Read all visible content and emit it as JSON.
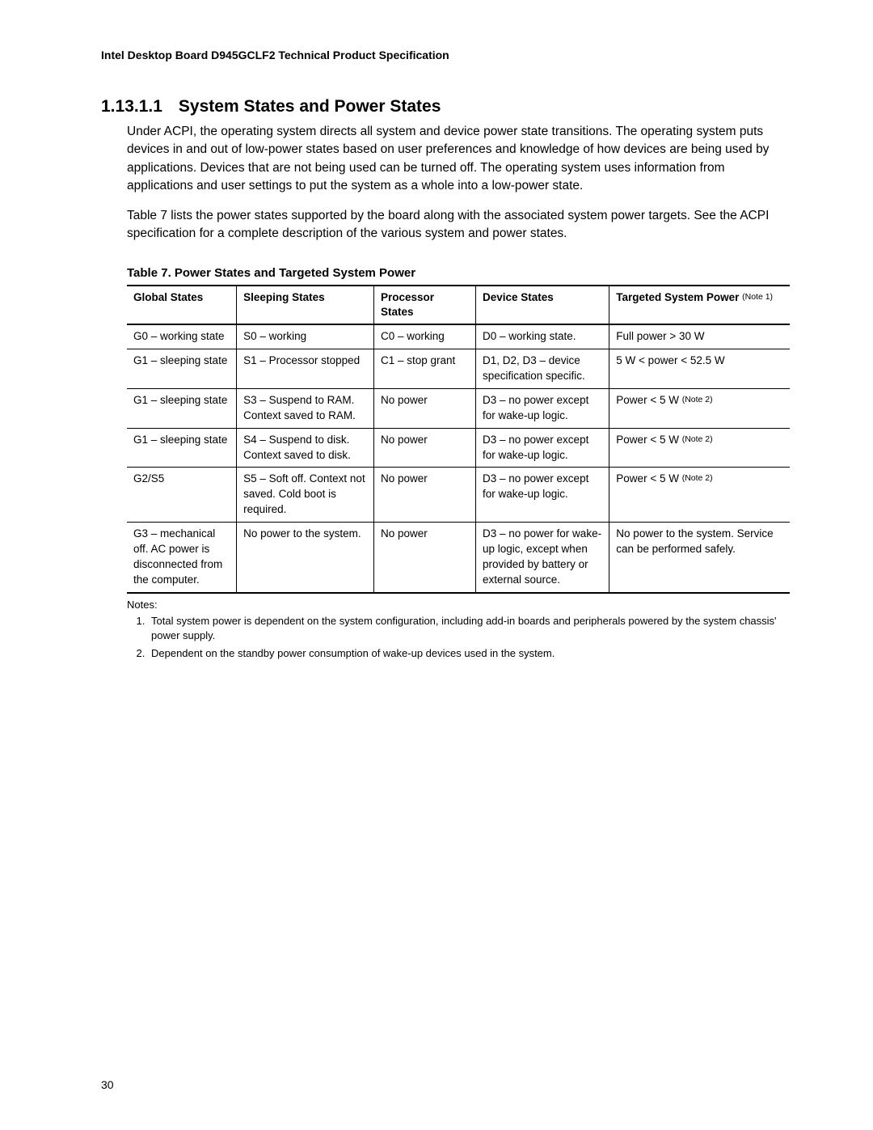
{
  "header": {
    "running_title": "Intel Desktop Board D945GCLF2 Technical Product Specification",
    "page_number": "30"
  },
  "section": {
    "number": "1.13.1.1",
    "title": "System States and Power States",
    "para1": "Under ACPI, the operating system directs all system and device power state transitions.  The operating system puts devices in and out of low-power states based on user preferences and knowledge of how devices are being used by applications.  Devices that are not being used can be turned off.  The operating system uses information from applications and user settings to put the system as a whole into a low-power state.",
    "para2": "Table 7 lists the power states supported by the board along with the associated system power targets.  See the ACPI specification for a complete description of the various system and power states."
  },
  "table": {
    "caption": "Table 7.  Power States and Targeted System Power",
    "columns": {
      "global": "Global States",
      "sleeping": "Sleeping States",
      "processor": "Processor States",
      "device": "Device States",
      "power_main": "Targeted System Power",
      "power_note": "(Note 1)"
    },
    "rows": [
      {
        "global": "G0 – working state",
        "sleeping": "S0 – working",
        "processor": "C0 – working",
        "device": "D0 – working state.",
        "power": "Full power > 30 W",
        "power_note": ""
      },
      {
        "global": "G1 – sleeping state",
        "sleeping": "S1 – Processor stopped",
        "processor": "C1 – stop grant",
        "device": "D1, D2, D3 – device specification specific.",
        "power": "5 W < power < 52.5 W",
        "power_note": ""
      },
      {
        "global": "G1 – sleeping state",
        "sleeping": "S3 – Suspend to RAM.  Context saved to RAM.",
        "processor": "No power",
        "device": "D3 – no power except for wake-up logic.",
        "power": "Power < 5 W",
        "power_note": "(Note 2)"
      },
      {
        "global": "G1 – sleeping state",
        "sleeping": "S4 – Suspend to disk.  Context saved to disk.",
        "processor": "No power",
        "device": "D3 – no power except for wake-up logic.",
        "power": "Power < 5 W",
        "power_note": "(Note 2)"
      },
      {
        "global": "G2/S5",
        "sleeping": "S5 – Soft off. Context not saved. Cold boot is required.",
        "processor": "No power",
        "device": "D3 – no power except for wake-up logic.",
        "power": "Power < 5 W",
        "power_note": "(Note 2)"
      },
      {
        "global": "G3 – mechanical off. AC power is disconnected from the computer.",
        "sleeping": "No power to the system.",
        "processor": "No power",
        "device": "D3 – no power for wake-up logic, except when provided by battery or external source.",
        "power": "No power to the system. Service can be performed safely.",
        "power_note": ""
      }
    ]
  },
  "notes": {
    "label": "Notes:",
    "items": [
      "Total system power is dependent on the system configuration, including add-in boards and peripherals powered by the system chassis' power supply.",
      "Dependent on the standby power consumption of wake-up devices used in the system."
    ]
  }
}
